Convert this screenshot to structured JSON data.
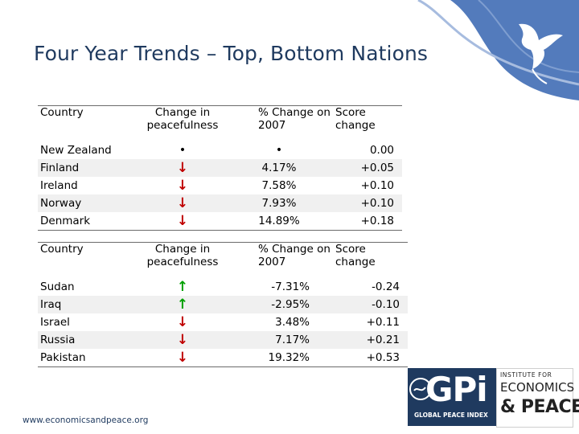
{
  "slide": {
    "title": "Four Year Trends – Top, Bottom Nations",
    "footer": "www.economicsandpeace.org"
  },
  "colors": {
    "title": "#1f3a5f",
    "decrease_arrow": "#c00000",
    "increase_arrow": "#00a000",
    "band": "#f0f0f0",
    "corner_blue": "#4a74b8"
  },
  "headers": {
    "country": "Country",
    "change_line1": "Change in",
    "change_line2": "peacefulness",
    "pct_line1": "% Change on",
    "pct_line2": "2007",
    "score_line1": "Score",
    "score_line2": "change"
  },
  "top_nations": [
    {
      "country": "New Zealand",
      "change": "•",
      "change_kind": "dot",
      "pct": "•",
      "score": "0.00"
    },
    {
      "country": "Finland",
      "change": "↓",
      "change_kind": "down",
      "pct": "4.17%",
      "score": "+0.05"
    },
    {
      "country": "Ireland",
      "change": "↓",
      "change_kind": "down",
      "pct": "7.58%",
      "score": "+0.10"
    },
    {
      "country": "Norway",
      "change": "↓",
      "change_kind": "down",
      "pct": "7.93%",
      "score": "+0.10"
    },
    {
      "country": "Denmark",
      "change": "↓",
      "change_kind": "down",
      "pct": "14.89%",
      "score": "+0.18"
    }
  ],
  "bottom_nations": [
    {
      "country": "Sudan",
      "change": "↑",
      "change_kind": "up",
      "pct": "-7.31%",
      "score": "-0.24"
    },
    {
      "country": "Iraq",
      "change": "↑",
      "change_kind": "up",
      "pct": "-2.95%",
      "score": "-0.10"
    },
    {
      "country": "Israel",
      "change": "↓",
      "change_kind": "down",
      "pct": "3.48%",
      "score": "+0.11"
    },
    {
      "country": "Russia",
      "change": "↓",
      "change_kind": "down",
      "pct": "7.17%",
      "score": "+0.21"
    },
    {
      "country": "Pakistan",
      "change": "↓",
      "change_kind": "down",
      "pct": "19.32%",
      "score": "+0.53"
    }
  ],
  "logos": {
    "gpi_mark": "GPi",
    "gpi_name": "GLOBAL PEACE INDEX",
    "iep_line1": "INSTITUTE FOR",
    "iep_line2": "ECONOMICS",
    "iep_line3": "& PEACE",
    "corner_icon": "dove-icon"
  }
}
